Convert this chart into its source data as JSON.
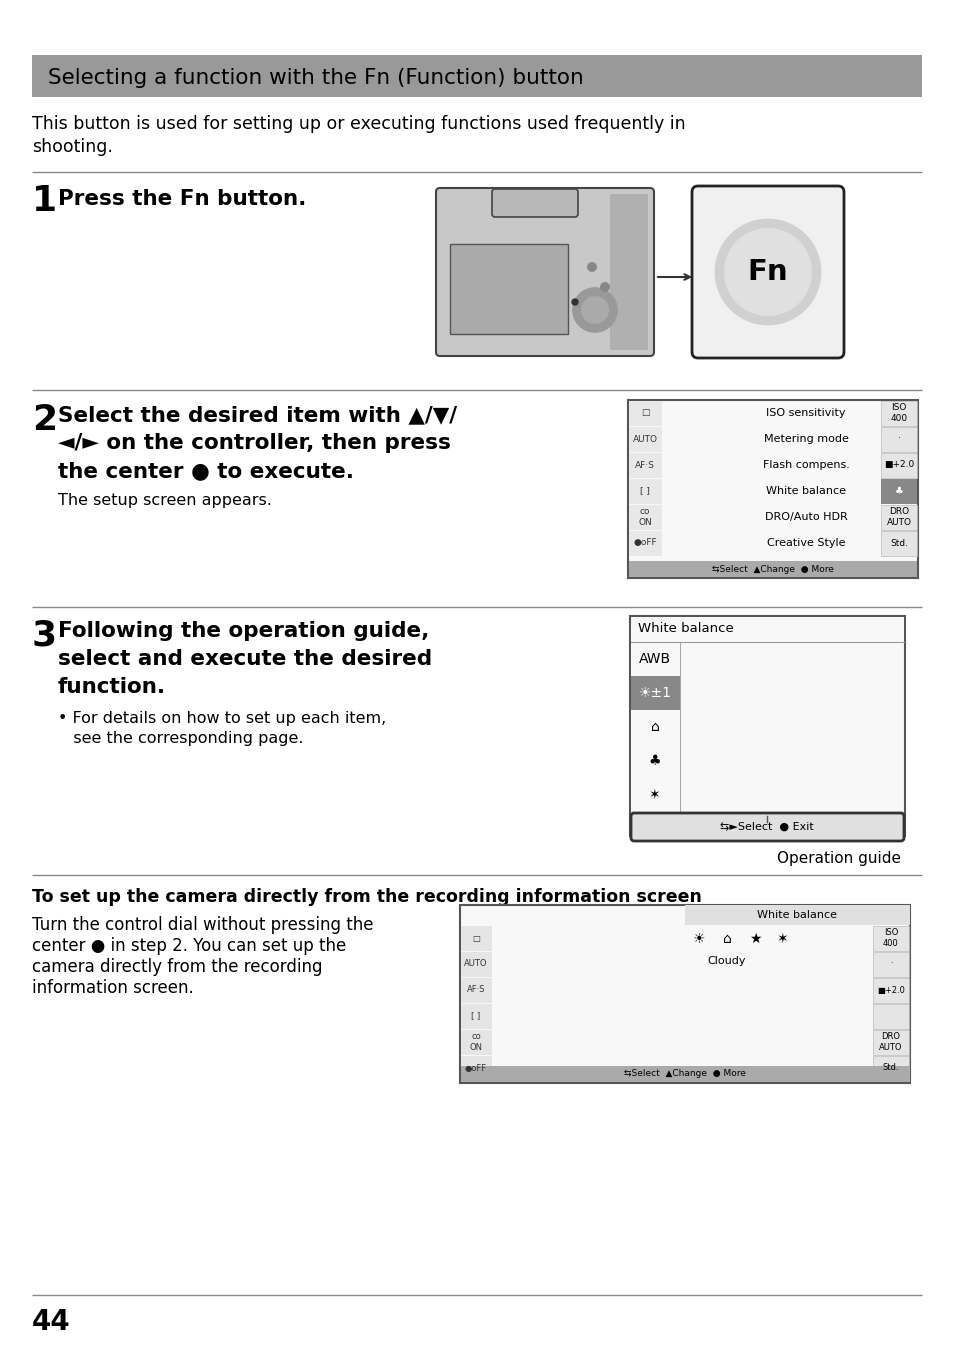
{
  "bg_color": "#ffffff",
  "title_bg_color": "#999999",
  "title_text": "Selecting a function with the Fn (Function) button",
  "intro_text1": "This button is used for setting up or executing functions used frequently in",
  "intro_text2": "shooting.",
  "step1_num": "1",
  "step1_text": "Press the Fn button.",
  "step2_num": "2",
  "step2_line1": "Select the desired item with ▲/▼/",
  "step2_line2": "◄/► on the controller, then press",
  "step2_line3": "the center ● to execute.",
  "step2_sub": "The setup screen appears.",
  "step3_num": "3",
  "step3_line1": "Following the operation guide,",
  "step3_line2": "select and execute the desired",
  "step3_line3": "function.",
  "step3_bullet1": "• For details on how to set up each item,",
  "step3_bullet2": "   see the corresponding page.",
  "section_title": "To set up the camera directly from the recording information screen",
  "section_text1": "Turn the control dial without pressing the",
  "section_text2": "center ● in step 2. You can set up the",
  "section_text3": "camera directly from the recording",
  "section_text4": "information screen.",
  "page_num": "44",
  "menu_labels": [
    "ISO sensitivity",
    "Metering mode",
    "Flash compens.",
    "White balance",
    "DRO/Auto HDR",
    "Creative Style"
  ],
  "menu_vals": [
    "ISO\n400",
    "·",
    "■+2.0",
    "",
    "DRO\nAUTO",
    "Std."
  ],
  "wb_items": [
    "AWB",
    "☀±1",
    "⌂",
    "♣",
    "✶"
  ]
}
